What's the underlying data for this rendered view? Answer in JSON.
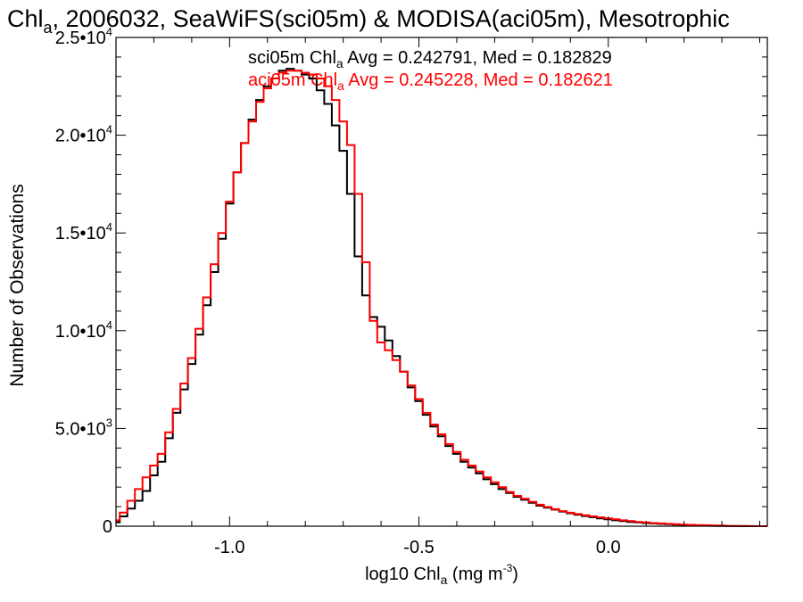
{
  "chart_data": {
    "type": "line",
    "title": {
      "main": "Chl",
      "sub": "a",
      "rest": ", 2006032, SeaWiFS(sci05m) & MODISA(aci05m), Mesotrophic"
    },
    "xlabel": {
      "pre": "log10 Chl",
      "sub": "a",
      "mid": " (mg m",
      "sup": "-3",
      "post": ")"
    },
    "ylabel": "Number of Observations",
    "xlim": [
      -1.3,
      0.42
    ],
    "ylim": [
      0,
      25000
    ],
    "x_ticks": [
      {
        "value": -1.0,
        "label": "-1.0"
      },
      {
        "value": -0.5,
        "label": "-0.5"
      },
      {
        "value": 0.0,
        "label": "0.0"
      }
    ],
    "y_ticks": [
      {
        "value": 0,
        "mant": "0",
        "exp": ""
      },
      {
        "value": 5000,
        "mant": "5.0•10",
        "exp": "3"
      },
      {
        "value": 10000,
        "mant": "1.0•10",
        "exp": "4"
      },
      {
        "value": 15000,
        "mant": "1.5•10",
        "exp": "4"
      },
      {
        "value": 20000,
        "mant": "2.0•10",
        "exp": "4"
      },
      {
        "value": 25000,
        "mant": "2.5•10",
        "exp": "4"
      }
    ],
    "grid": false,
    "legend": [
      {
        "pre": "sci05m Chl",
        "sub": "a",
        "post": " Avg = 0.242791, Med = 0.182829",
        "color": "#000000"
      },
      {
        "pre": "aci05m Chl",
        "sub": "a",
        "post": " Avg = 0.245228, Med = 0.182621",
        "color": "#ff0000"
      }
    ],
    "series": [
      {
        "color": "#000000",
        "x": [
          -1.3,
          -1.28,
          -1.26,
          -1.24,
          -1.22,
          -1.2,
          -1.18,
          -1.16,
          -1.14,
          -1.12,
          -1.1,
          -1.08,
          -1.06,
          -1.04,
          -1.02,
          -1.0,
          -0.98,
          -0.96,
          -0.94,
          -0.92,
          -0.9,
          -0.88,
          -0.86,
          -0.84,
          -0.82,
          -0.8,
          -0.78,
          -0.76,
          -0.74,
          -0.72,
          -0.7,
          -0.68,
          -0.66,
          -0.64,
          -0.62,
          -0.6,
          -0.58,
          -0.56,
          -0.54,
          -0.52,
          -0.5,
          -0.48,
          -0.46,
          -0.44,
          -0.42,
          -0.4,
          -0.38,
          -0.36,
          -0.34,
          -0.32,
          -0.3,
          -0.28,
          -0.26,
          -0.24,
          -0.22,
          -0.2,
          -0.18,
          -0.16,
          -0.14,
          -0.12,
          -0.1,
          -0.08,
          -0.06,
          -0.04,
          -0.02,
          0.0,
          0.02,
          0.04,
          0.06,
          0.08,
          0.1,
          0.12,
          0.14,
          0.16,
          0.18,
          0.2,
          0.22,
          0.24,
          0.26,
          0.28,
          0.3,
          0.32,
          0.34,
          0.36,
          0.38,
          0.4,
          0.42
        ],
        "values": [
          200,
          500,
          900,
          1300,
          1800,
          2600,
          3300,
          4500,
          5800,
          7000,
          8300,
          9800,
          11300,
          13000,
          14700,
          16500,
          18100,
          19600,
          20800,
          21800,
          22500,
          22900,
          23300,
          23400,
          23300,
          23100,
          22900,
          22300,
          21600,
          20500,
          19200,
          17000,
          13800,
          11800,
          10700,
          10200,
          9500,
          8700,
          7900,
          7100,
          6400,
          5700,
          5100,
          4600,
          4100,
          3700,
          3300,
          3000,
          2700,
          2400,
          2150,
          1900,
          1700,
          1500,
          1350,
          1200,
          1050,
          950,
          850,
          750,
          660,
          590,
          520,
          460,
          400,
          350,
          300,
          260,
          220,
          190,
          160,
          140,
          120,
          100,
          80,
          60,
          50,
          40,
          30,
          20,
          10,
          5,
          3,
          2,
          1,
          0,
          0
        ]
      },
      {
        "color": "#ff0000",
        "x": [
          -1.3,
          -1.28,
          -1.26,
          -1.24,
          -1.22,
          -1.2,
          -1.18,
          -1.16,
          -1.14,
          -1.12,
          -1.1,
          -1.08,
          -1.06,
          -1.04,
          -1.02,
          -1.0,
          -0.98,
          -0.96,
          -0.94,
          -0.92,
          -0.9,
          -0.88,
          -0.86,
          -0.84,
          -0.82,
          -0.8,
          -0.78,
          -0.76,
          -0.74,
          -0.72,
          -0.7,
          -0.68,
          -0.66,
          -0.64,
          -0.62,
          -0.6,
          -0.58,
          -0.56,
          -0.54,
          -0.52,
          -0.5,
          -0.48,
          -0.46,
          -0.44,
          -0.42,
          -0.4,
          -0.38,
          -0.36,
          -0.34,
          -0.32,
          -0.3,
          -0.28,
          -0.26,
          -0.24,
          -0.22,
          -0.2,
          -0.18,
          -0.16,
          -0.14,
          -0.12,
          -0.1,
          -0.08,
          -0.06,
          -0.04,
          -0.02,
          0.0,
          0.02,
          0.04,
          0.06,
          0.08,
          0.1,
          0.12,
          0.14,
          0.16,
          0.18,
          0.2,
          0.22,
          0.24,
          0.26,
          0.28,
          0.3,
          0.32,
          0.34,
          0.36,
          0.38,
          0.4,
          0.42
        ],
        "values": [
          300,
          700,
          1300,
          1900,
          2500,
          3100,
          3700,
          4800,
          6000,
          7300,
          8600,
          10100,
          11700,
          13400,
          15000,
          16600,
          18100,
          19600,
          20700,
          21700,
          22400,
          22900,
          23200,
          23300,
          23300,
          23200,
          23100,
          22900,
          22500,
          21800,
          20700,
          19500,
          17000,
          13500,
          10500,
          9400,
          9000,
          8500,
          7900,
          7200,
          6500,
          5800,
          5200,
          4700,
          4200,
          3800,
          3400,
          3100,
          2800,
          2500,
          2250,
          2000,
          1750,
          1550,
          1400,
          1250,
          1100,
          980,
          870,
          770,
          690,
          620,
          560,
          500,
          450,
          400,
          350,
          300,
          260,
          220,
          190,
          160,
          140,
          120,
          100,
          80,
          70,
          60,
          50,
          40,
          30,
          20,
          15,
          10,
          5,
          2,
          0
        ]
      }
    ]
  }
}
